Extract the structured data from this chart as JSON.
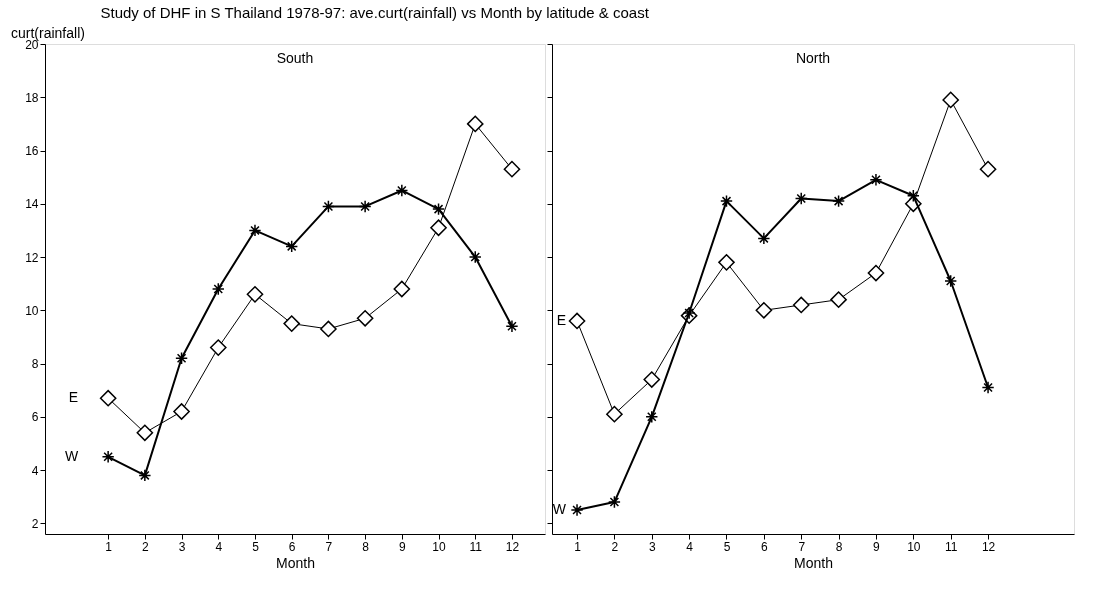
{
  "chart_data": [
    {
      "type": "line",
      "title": "Study of DHF in S Thailand 1978-97: ave.curt(rainfall) vs Month by latitude & coast",
      "subtitle": "South",
      "ylabel": "curt(rainfall)",
      "xlabel": "Month",
      "x": [
        1,
        2,
        3,
        4,
        5,
        6,
        7,
        8,
        9,
        10,
        11,
        12
      ],
      "xlim": [
        -0.72,
        12.9
      ],
      "xticks": [
        1,
        2,
        3,
        4,
        5,
        6,
        7,
        8,
        9,
        10,
        11,
        12
      ],
      "ylim": [
        1.6,
        20
      ],
      "yticks": [
        2,
        4,
        6,
        8,
        10,
        12,
        14,
        16,
        18,
        20
      ],
      "grid": false,
      "legend": false,
      "series": [
        {
          "name": "E",
          "color": "#000000",
          "marker": "diamond",
          "values": [
            6.7,
            5.4,
            6.2,
            8.6,
            10.6,
            9.5,
            9.3,
            9.7,
            10.8,
            13.1,
            17.0,
            15.3
          ]
        },
        {
          "name": "W",
          "color": "#000000",
          "marker": "cross",
          "values": [
            4.5,
            3.8,
            8.2,
            10.8,
            13.0,
            12.4,
            13.9,
            13.9,
            14.5,
            13.8,
            12.0,
            9.4
          ]
        }
      ]
    },
    {
      "type": "line",
      "subtitle": "North",
      "xlabel": "Month",
      "x": [
        1,
        2,
        3,
        4,
        5,
        6,
        7,
        8,
        9,
        10,
        11,
        12
      ],
      "xlim": [
        0.33,
        14.3
      ],
      "xticks": [
        1,
        2,
        3,
        4,
        5,
        6,
        7,
        8,
        9,
        10,
        11,
        12
      ],
      "ylim": [
        1.6,
        20
      ],
      "yticks": [
        2,
        4,
        6,
        8,
        10,
        12,
        14,
        16,
        18,
        20
      ],
      "tick_labels": "x",
      "grid": false,
      "legend": false,
      "series": [
        {
          "name": "E",
          "color": "#000000",
          "marker": "diamond",
          "values": [
            9.6,
            6.1,
            7.4,
            9.8,
            11.8,
            10.0,
            10.2,
            10.4,
            11.4,
            14.0,
            17.9,
            15.3
          ]
        },
        {
          "name": "W",
          "color": "#000000",
          "marker": "cross",
          "values": [
            2.5,
            2.8,
            6.0,
            9.9,
            14.1,
            12.7,
            14.2,
            14.1,
            14.9,
            14.3,
            11.1,
            7.1
          ]
        }
      ]
    }
  ]
}
